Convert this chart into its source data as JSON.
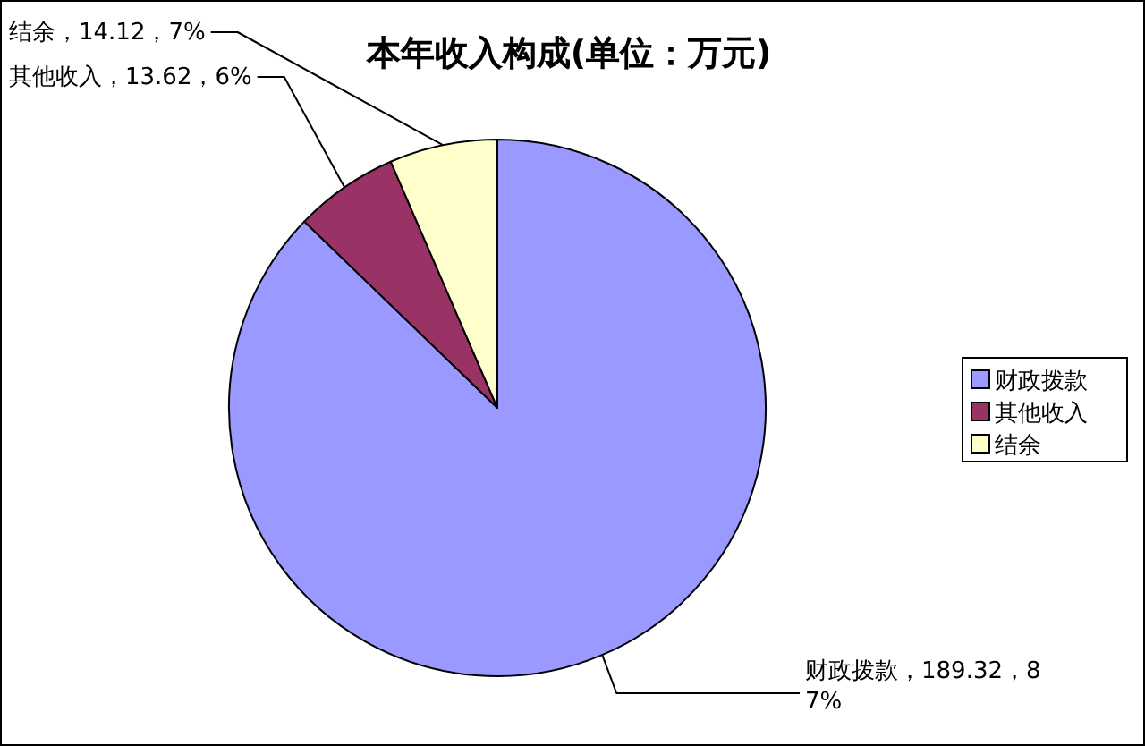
{
  "chart_data": {
    "type": "pie",
    "title": "本年收入构成(单位：万元)",
    "categories": [
      "财政拨款",
      "其他收入",
      "结余"
    ],
    "values": [
      189.32,
      13.62,
      14.12
    ],
    "colors": [
      "#9999ff",
      "#993366",
      "#ffffcc"
    ],
    "value_labels": [
      "财政拨款，189.32，87%",
      "其他收入，13.62，6%",
      "结余，14.12，7%"
    ],
    "legend": "right"
  }
}
